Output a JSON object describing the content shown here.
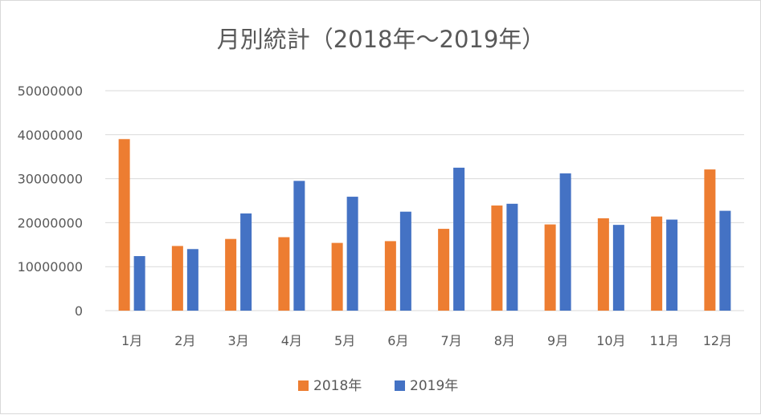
{
  "chart_data": {
    "type": "bar",
    "title": "月別統計（2018年～2019年）",
    "xlabel": "",
    "ylabel": "",
    "categories": [
      "1月",
      "2月",
      "3月",
      "4月",
      "5月",
      "6月",
      "7月",
      "8月",
      "9月",
      "10月",
      "11月",
      "12月"
    ],
    "series": [
      {
        "name": "2018年",
        "color": "#ed7d31",
        "values": [
          39000000,
          14700000,
          16300000,
          16700000,
          15400000,
          15800000,
          18600000,
          23900000,
          19600000,
          21000000,
          21400000,
          32100000
        ]
      },
      {
        "name": "2019年",
        "color": "#4472c4",
        "values": [
          12400000,
          14000000,
          22100000,
          29500000,
          25900000,
          22500000,
          32500000,
          24300000,
          31200000,
          19500000,
          20700000,
          22700000
        ]
      }
    ],
    "ylim": [
      0,
      50000000
    ],
    "yticks": [
      "0",
      "10000000",
      "20000000",
      "30000000",
      "40000000",
      "50000000"
    ],
    "grid": true,
    "legend_position": "bottom"
  }
}
